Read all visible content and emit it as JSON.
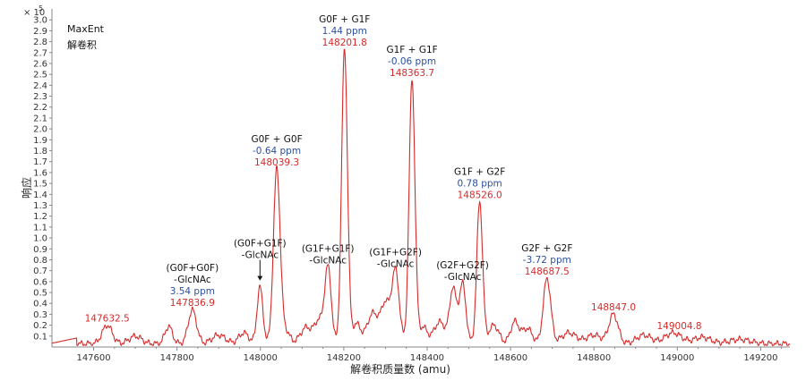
{
  "chart_data": {
    "type": "line",
    "exponent_label": "× 10",
    "exponent_power": "5",
    "panel_title": "MaxEnt",
    "panel_subtitle": "解卷积",
    "xlabel": "解卷积质量数 (amu)",
    "ylabel": "响应",
    "xlim": [
      147500,
      149270
    ],
    "ylim": [
      0,
      3.1
    ],
    "x_ticks": [
      147600,
      147800,
      148000,
      148200,
      148400,
      148600,
      148800,
      149000,
      149200
    ],
    "y_ticks": [
      "0.1",
      "0.2",
      "0.3",
      "0.4",
      "0.5",
      "0.6",
      "0.7",
      "0.8",
      "0.9",
      "1.0",
      "1.1",
      "1.2",
      "1.3",
      "1.4",
      "1.5",
      "1.6",
      "1.7",
      "1.8",
      "1.9",
      "2.0",
      "2.1",
      "2.2",
      "2.3",
      "2.4",
      "2.5",
      "2.6",
      "2.7",
      "2.8",
      "2.9",
      "3.0"
    ],
    "colors": {
      "line": "#d42b2b",
      "mass": "#d42b2b",
      "ppm": "#2c4f9e",
      "axis": "#888888"
    },
    "series": [
      {
        "peaks": [
          {
            "x": 147632.5,
            "y": 0.17,
            "w": 12
          },
          {
            "x": 147700,
            "y": 0.07,
            "w": 15
          },
          {
            "x": 147780,
            "y": 0.16,
            "w": 9
          },
          {
            "x": 147836.9,
            "y": 0.31,
            "w": 10
          },
          {
            "x": 147900,
            "y": 0.08,
            "w": 16
          },
          {
            "x": 147960,
            "y": 0.1,
            "w": 12
          },
          {
            "x": 147999,
            "y": 0.52,
            "w": 7
          },
          {
            "x": 148039.3,
            "y": 1.6,
            "w": 8
          },
          {
            "x": 148060,
            "y": 0.12,
            "w": 10
          },
          {
            "x": 148110,
            "y": 0.15,
            "w": 14
          },
          {
            "x": 148140,
            "y": 0.2,
            "w": 10
          },
          {
            "x": 148162,
            "y": 0.7,
            "w": 8
          },
          {
            "x": 148201.8,
            "y": 2.7,
            "w": 7
          },
          {
            "x": 148230,
            "y": 0.18,
            "w": 10
          },
          {
            "x": 148270,
            "y": 0.28,
            "w": 14
          },
          {
            "x": 148300,
            "y": 0.35,
            "w": 10
          },
          {
            "x": 148324,
            "y": 0.67,
            "w": 9
          },
          {
            "x": 148363.7,
            "y": 2.42,
            "w": 7
          },
          {
            "x": 148390,
            "y": 0.15,
            "w": 10
          },
          {
            "x": 148430,
            "y": 0.2,
            "w": 14
          },
          {
            "x": 148462,
            "y": 0.5,
            "w": 8
          },
          {
            "x": 148485,
            "y": 0.55,
            "w": 8
          },
          {
            "x": 148526.0,
            "y": 1.3,
            "w": 7
          },
          {
            "x": 148560,
            "y": 0.17,
            "w": 12
          },
          {
            "x": 148610,
            "y": 0.2,
            "w": 10
          },
          {
            "x": 148640,
            "y": 0.14,
            "w": 12
          },
          {
            "x": 148687.5,
            "y": 0.6,
            "w": 9
          },
          {
            "x": 148740,
            "y": 0.1,
            "w": 18
          },
          {
            "x": 148800,
            "y": 0.08,
            "w": 18
          },
          {
            "x": 148847.0,
            "y": 0.27,
            "w": 11
          },
          {
            "x": 148920,
            "y": 0.08,
            "w": 18
          },
          {
            "x": 148990,
            "y": 0.1,
            "w": 20
          },
          {
            "x": 149060,
            "y": 0.06,
            "w": 20
          },
          {
            "x": 149150,
            "y": 0.04,
            "w": 25
          }
        ]
      }
    ],
    "annotations": [
      {
        "lines": [
          "(G0F+G0F)",
          "-GlcNAc"
        ],
        "ppm": "3.54 ppm",
        "mass": "147836.9",
        "x": 147836.9,
        "y": 0.31
      },
      {
        "lines": [
          "(G0F+G1F)",
          "-GlcNAc"
        ],
        "ppm": "",
        "mass": "",
        "x": 147999,
        "y": 0.52,
        "arrow": true
      },
      {
        "lines": [
          "G0F + G0F"
        ],
        "ppm": "-0.64 ppm",
        "mass": "148039.3",
        "x": 148039.3,
        "y": 1.6
      },
      {
        "lines": [
          "(G1F+G1F)",
          "-GlcNAc"
        ],
        "ppm": "",
        "mass": "",
        "x": 148162,
        "y": 0.7
      },
      {
        "lines": [
          "G0F + G1F"
        ],
        "ppm": "1.44 ppm",
        "mass": "148201.8",
        "x": 148201.8,
        "y": 2.7
      },
      {
        "lines": [
          "(G1F+G2F)",
          "-GlcNAc"
        ],
        "ppm": "",
        "mass": "",
        "x": 148324,
        "y": 0.67
      },
      {
        "lines": [
          "G1F + G1F"
        ],
        "ppm": "-0.06 ppm",
        "mass": "148363.7",
        "x": 148363.7,
        "y": 2.42
      },
      {
        "lines": [
          "(G2F+G2F)",
          "-GlcNAc"
        ],
        "ppm": "",
        "mass": "",
        "x": 148485,
        "y": 0.55
      },
      {
        "lines": [
          "G1F + G2F"
        ],
        "ppm": "0.78 ppm",
        "mass": "148526.0",
        "x": 148526.0,
        "y": 1.3
      },
      {
        "lines": [
          "G2F + G2F"
        ],
        "ppm": "-3.72 ppm",
        "mass": "148687.5",
        "x": 148687.5,
        "y": 0.6
      },
      {
        "lines": [],
        "ppm": "",
        "mass": "147632.5",
        "x": 147632.5,
        "y": 0.17
      },
      {
        "lines": [],
        "ppm": "",
        "mass": "148847.0",
        "x": 148847.0,
        "y": 0.27
      },
      {
        "lines": [],
        "ppm": "",
        "mass": "149004.8",
        "x": 149004.8,
        "y": 0.1
      }
    ]
  }
}
